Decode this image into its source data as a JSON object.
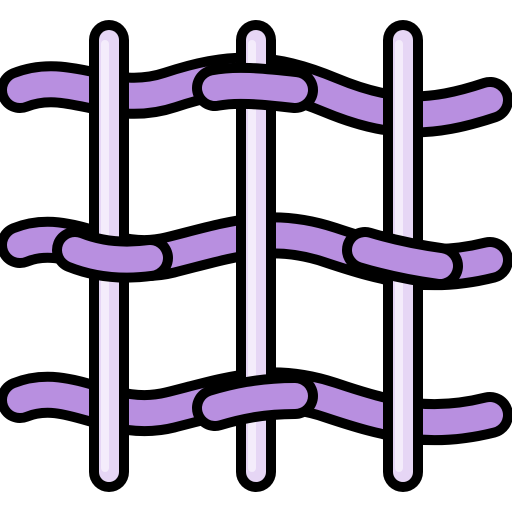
{
  "icon": {
    "name": "mesh-fabric-icon",
    "colors": {
      "outline": "#000000",
      "weft_fill": "#b88fe0",
      "weft_shade": "#a277d6",
      "warp_fill": "#e6d6f5",
      "warp_highlight": "#f4ecfb",
      "background": "#ffffff"
    }
  }
}
